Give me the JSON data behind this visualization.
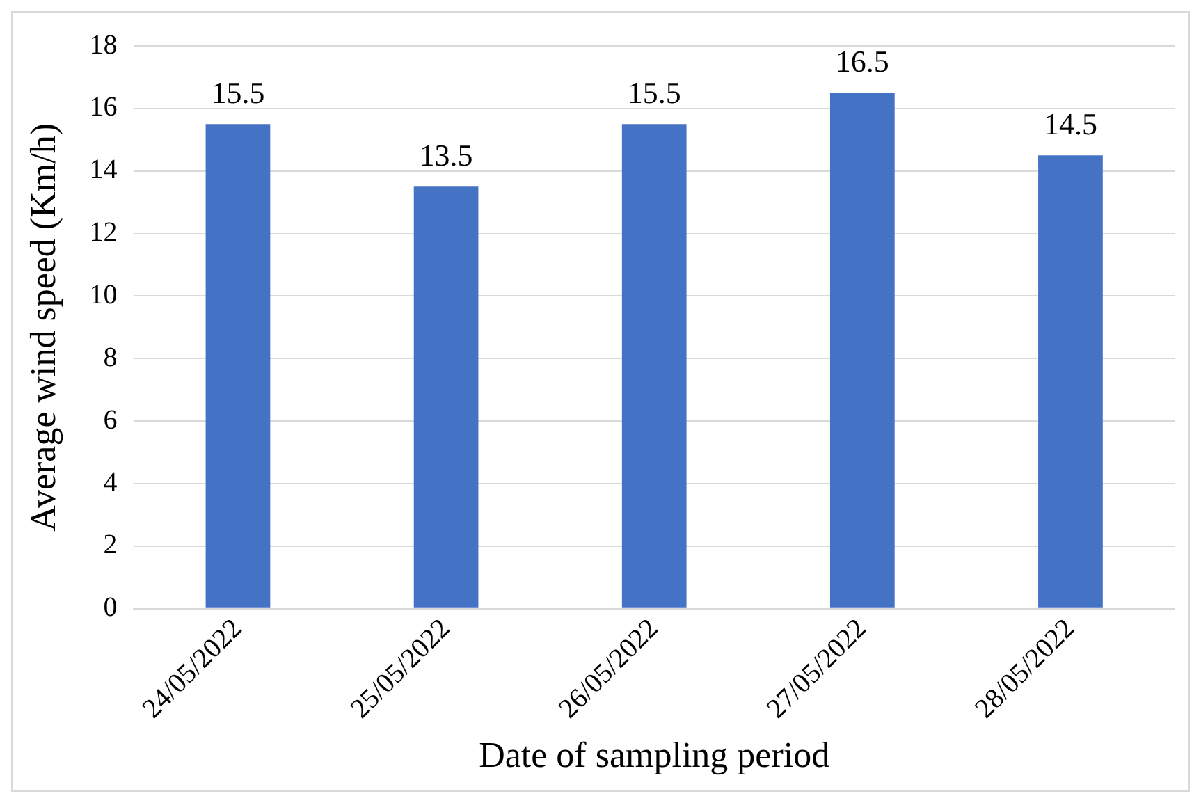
{
  "chart_data": {
    "type": "bar",
    "categories": [
      "24/05/2022",
      "25/05/2022",
      "26/05/2022",
      "27/05/2022",
      "28/05/2022"
    ],
    "values": [
      15.5,
      13.5,
      15.5,
      16.5,
      14.5
    ],
    "color": "#4472c4",
    "xlabel": "Date of sampling period",
    "ylabel": "Average wind speed (Km/h)",
    "ylim": [
      0,
      18
    ],
    "yticks": [
      0,
      2,
      4,
      6,
      8,
      10,
      12,
      14,
      16,
      18
    ],
    "grid": "y",
    "data_labels": true
  }
}
